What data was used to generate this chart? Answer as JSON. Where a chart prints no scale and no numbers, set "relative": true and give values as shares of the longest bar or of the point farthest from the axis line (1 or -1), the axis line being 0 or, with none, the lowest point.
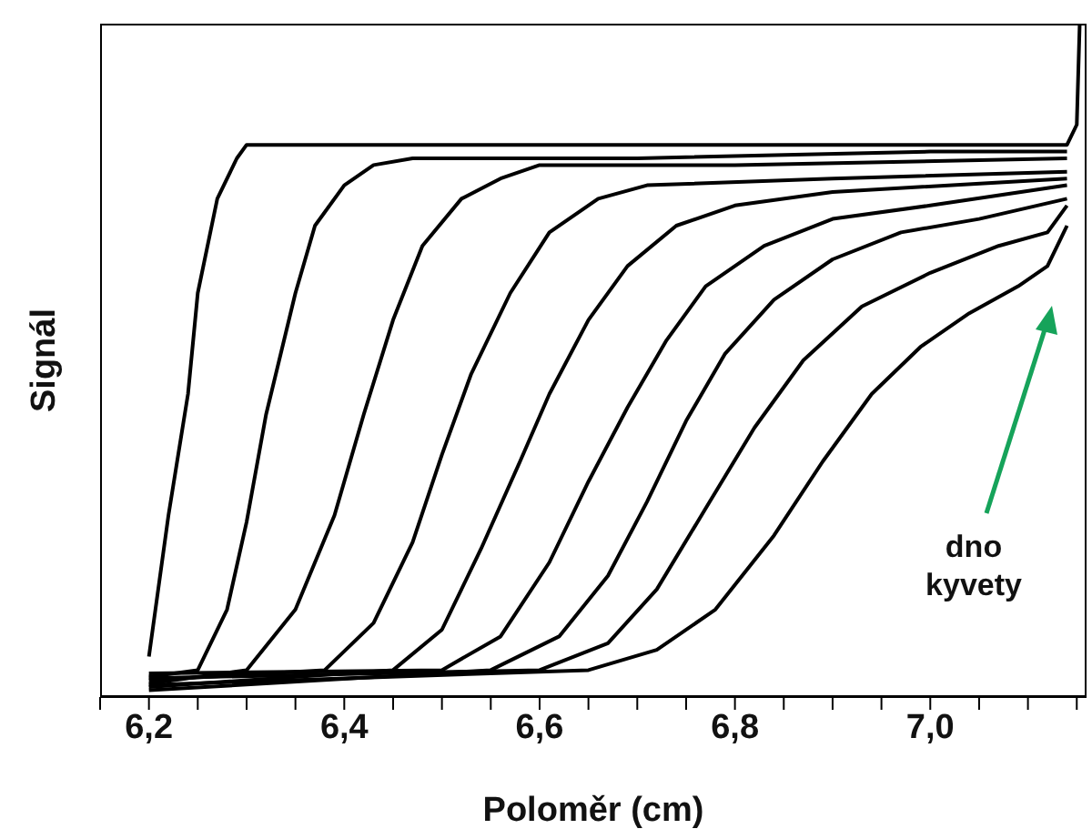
{
  "chart_data": {
    "type": "line",
    "relative": true,
    "xlabel": "Poloměr (cm)",
    "ylabel": "Signál",
    "marker": "none",
    "line_style": "solid",
    "xlim": [
      6.15,
      7.16
    ],
    "xticks": [
      {
        "value": 6.15,
        "label": null
      },
      {
        "value": 6.2,
        "label": "6,2"
      },
      {
        "value": 6.25,
        "label": null
      },
      {
        "value": 6.3,
        "label": null
      },
      {
        "value": 6.35,
        "label": null
      },
      {
        "value": 6.4,
        "label": "6,4"
      },
      {
        "value": 6.45,
        "label": null
      },
      {
        "value": 6.5,
        "label": null
      },
      {
        "value": 6.55,
        "label": null
      },
      {
        "value": 6.6,
        "label": "6,6"
      },
      {
        "value": 6.65,
        "label": null
      },
      {
        "value": 6.7,
        "label": null
      },
      {
        "value": 6.75,
        "label": null
      },
      {
        "value": 6.8,
        "label": "6,8"
      },
      {
        "value": 6.85,
        "label": null
      },
      {
        "value": 6.9,
        "label": null
      },
      {
        "value": 6.95,
        "label": null
      },
      {
        "value": 7.0,
        "label": "7,0"
      },
      {
        "value": 7.05,
        "label": null
      },
      {
        "value": 7.1,
        "label": null
      },
      {
        "value": 7.15,
        "label": null
      }
    ],
    "annotations": [
      "dno kyvety"
    ],
    "series": [
      {
        "color": "#000000",
        "x": [
          6.2,
          6.22,
          6.24,
          6.25,
          6.27,
          6.29,
          6.3,
          6.5,
          6.8,
          7.0,
          7.14,
          7.15,
          7.153
        ],
        "values": [
          0.06,
          0.27,
          0.45,
          0.6,
          0.74,
          0.8,
          0.82,
          0.82,
          0.82,
          0.82,
          0.82,
          0.85,
          1.0
        ]
      },
      {
        "color": "#000000",
        "x": [
          6.2,
          6.25,
          6.28,
          6.3,
          6.32,
          6.35,
          6.37,
          6.4,
          6.43,
          6.47,
          6.7,
          7.0,
          7.14
        ],
        "values": [
          0.03,
          0.04,
          0.13,
          0.26,
          0.42,
          0.6,
          0.7,
          0.76,
          0.79,
          0.8,
          0.8,
          0.81,
          0.81
        ]
      },
      {
        "color": "#000000",
        "x": [
          6.2,
          6.3,
          6.35,
          6.39,
          6.42,
          6.45,
          6.48,
          6.52,
          6.56,
          6.6,
          6.8,
          7.14
        ],
        "values": [
          0.02,
          0.04,
          0.13,
          0.27,
          0.42,
          0.56,
          0.67,
          0.74,
          0.77,
          0.79,
          0.79,
          0.8
        ]
      },
      {
        "color": "#000000",
        "x": [
          6.2,
          6.38,
          6.43,
          6.47,
          6.5,
          6.53,
          6.57,
          6.61,
          6.66,
          6.71,
          6.9,
          7.14
        ],
        "values": [
          0.025,
          0.04,
          0.11,
          0.23,
          0.36,
          0.48,
          0.6,
          0.69,
          0.74,
          0.76,
          0.77,
          0.78
        ]
      },
      {
        "color": "#000000",
        "x": [
          6.2,
          6.45,
          6.5,
          6.54,
          6.58,
          6.61,
          6.65,
          6.69,
          6.74,
          6.8,
          6.9,
          7.14
        ],
        "values": [
          0.015,
          0.04,
          0.1,
          0.22,
          0.35,
          0.45,
          0.56,
          0.64,
          0.7,
          0.73,
          0.75,
          0.77
        ]
      },
      {
        "color": "#000000",
        "x": [
          6.2,
          6.5,
          6.56,
          6.61,
          6.65,
          6.69,
          6.73,
          6.77,
          6.83,
          6.9,
          7.0,
          7.14
        ],
        "values": [
          0.035,
          0.04,
          0.09,
          0.2,
          0.32,
          0.43,
          0.53,
          0.61,
          0.67,
          0.71,
          0.73,
          0.76
        ]
      },
      {
        "color": "#000000",
        "x": [
          6.2,
          6.55,
          6.62,
          6.67,
          6.71,
          6.75,
          6.79,
          6.84,
          6.9,
          6.97,
          7.05,
          7.14
        ],
        "values": [
          0.01,
          0.04,
          0.09,
          0.18,
          0.29,
          0.41,
          0.51,
          0.59,
          0.65,
          0.69,
          0.71,
          0.74
        ]
      },
      {
        "color": "#000000",
        "x": [
          6.2,
          6.6,
          6.67,
          6.72,
          6.77,
          6.82,
          6.87,
          6.93,
          7.0,
          7.07,
          7.12,
          7.14
        ],
        "values": [
          0.028,
          0.04,
          0.08,
          0.16,
          0.28,
          0.4,
          0.5,
          0.58,
          0.63,
          0.67,
          0.69,
          0.73
        ]
      },
      {
        "color": "#000000",
        "x": [
          6.2,
          6.65,
          6.72,
          6.78,
          6.84,
          6.89,
          6.94,
          6.99,
          7.04,
          7.09,
          7.12,
          7.14
        ],
        "values": [
          0.018,
          0.04,
          0.07,
          0.13,
          0.24,
          0.35,
          0.45,
          0.52,
          0.57,
          0.61,
          0.64,
          0.7
        ]
      }
    ]
  }
}
